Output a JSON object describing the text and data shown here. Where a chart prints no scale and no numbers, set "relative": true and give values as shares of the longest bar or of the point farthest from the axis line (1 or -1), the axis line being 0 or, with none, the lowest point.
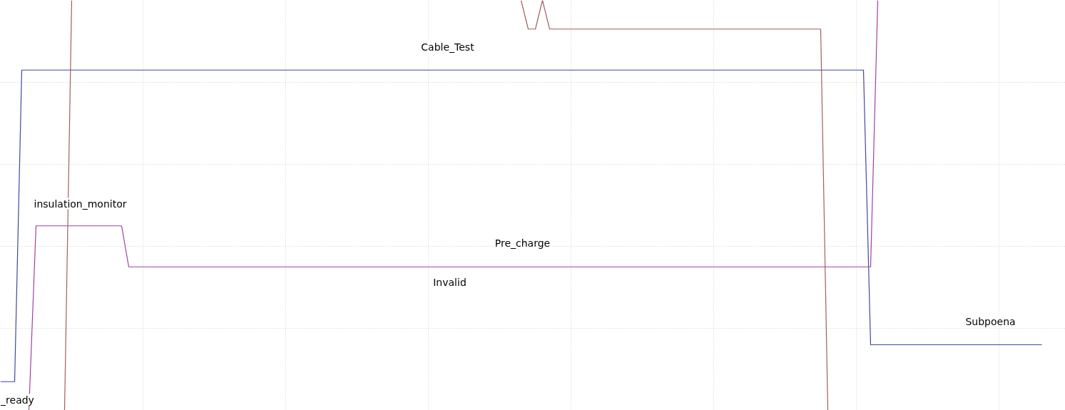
{
  "chart_data": {
    "type": "line",
    "relative": true,
    "grid": true,
    "tick_labels": false,
    "legend": false,
    "line_style": "solid",
    "marker": "none",
    "categories": [
      null,
      null,
      null,
      null,
      null,
      null,
      null,
      null,
      null,
      null,
      null,
      null,
      null,
      null,
      null,
      null,
      null,
      null,
      null,
      null,
      null,
      null,
      null,
      null,
      null,
      null,
      null,
      null,
      null,
      null,
      null,
      null,
      null,
      null,
      null,
      null,
      null,
      null,
      null,
      null,
      null,
      null,
      null,
      null,
      null,
      null,
      null,
      null,
      null,
      null,
      null,
      null,
      null,
      null,
      null,
      null,
      null,
      null,
      null,
      null,
      null,
      null,
      null,
      null,
      null,
      null,
      null,
      null,
      null,
      null,
      null,
      null,
      null,
      null,
      null,
      null,
      null,
      null,
      null,
      null,
      null,
      null,
      null,
      null,
      null,
      null,
      null,
      null,
      null,
      null,
      null,
      null,
      null,
      null,
      null,
      null,
      null,
      null,
      null,
      null,
      null,
      null,
      null,
      null,
      null,
      null,
      null,
      null,
      null,
      null,
      null,
      null,
      null,
      null,
      null,
      null,
      null,
      null,
      null,
      null,
      null,
      null,
      null,
      null,
      null,
      null,
      null,
      null,
      null,
      null,
      null,
      null,
      null,
      null,
      null,
      null,
      null,
      null,
      null,
      null,
      null,
      null,
      null,
      null,
      null,
      null,
      null,
      null,
      null,
      null
    ],
    "series": [
      {
        "color": "#3f48a0",
        "values": [
          0.07,
          0.07,
          0.07,
          0.83,
          0.83,
          0.83,
          0.83,
          0.83,
          0.83,
          0.83,
          0.83,
          0.83,
          0.83,
          0.83,
          0.83,
          0.83,
          0.83,
          0.83,
          0.83,
          0.83,
          0.83,
          0.83,
          0.83,
          0.83,
          0.83,
          0.83,
          0.83,
          0.83,
          0.83,
          0.83,
          0.83,
          0.83,
          0.83,
          0.83,
          0.83,
          0.83,
          0.83,
          0.83,
          0.83,
          0.83,
          0.83,
          0.83,
          0.83,
          0.83,
          0.83,
          0.83,
          0.83,
          0.83,
          0.83,
          0.83,
          0.83,
          0.83,
          0.83,
          0.83,
          0.83,
          0.83,
          0.83,
          0.83,
          0.83,
          0.83,
          0.83,
          0.83,
          0.83,
          0.83,
          0.83,
          0.83,
          0.83,
          0.83,
          0.83,
          0.83,
          0.83,
          0.83,
          0.83,
          0.83,
          0.83,
          0.83,
          0.83,
          0.83,
          0.83,
          0.83,
          0.83,
          0.83,
          0.83,
          0.83,
          0.83,
          0.83,
          0.83,
          0.83,
          0.83,
          0.83,
          0.83,
          0.83,
          0.83,
          0.83,
          0.83,
          0.83,
          0.83,
          0.83,
          0.83,
          0.83,
          0.83,
          0.83,
          0.83,
          0.83,
          0.83,
          0.83,
          0.83,
          0.83,
          0.83,
          0.83,
          0.83,
          0.83,
          0.83,
          0.83,
          0.83,
          0.83,
          0.83,
          0.83,
          0.83,
          0.83,
          0.83,
          0.83,
          0.16,
          0.16,
          0.16,
          0.16,
          0.16,
          0.16,
          0.16,
          0.16,
          0.16,
          0.16,
          0.16,
          0.16,
          0.16,
          0.16,
          0.16,
          0.16,
          0.16,
          0.16,
          0.16,
          0.16,
          0.16,
          0.16,
          0.16,
          0.16,
          0.16,
          null,
          null,
          null
        ]
      },
      {
        "color": "#a040a0",
        "values": [
          null,
          null,
          null,
          null,
          0,
          0.45,
          0.45,
          0.45,
          0.45,
          0.45,
          0.45,
          0.45,
          0.45,
          0.45,
          0.45,
          0.45,
          0.45,
          0.45,
          0.35,
          0.35,
          0.35,
          0.35,
          0.35,
          0.35,
          0.35,
          0.35,
          0.35,
          0.35,
          0.35,
          0.35,
          0.35,
          0.35,
          0.35,
          0.35,
          0.35,
          0.35,
          0.35,
          0.35,
          0.35,
          0.35,
          0.35,
          0.35,
          0.35,
          0.35,
          0.35,
          0.35,
          0.35,
          0.35,
          0.35,
          0.35,
          0.35,
          0.35,
          0.35,
          0.35,
          0.35,
          0.35,
          0.35,
          0.35,
          0.35,
          0.35,
          0.35,
          0.35,
          0.35,
          0.35,
          0.35,
          0.35,
          0.35,
          0.35,
          0.35,
          0.35,
          0.35,
          0.35,
          0.35,
          0.35,
          0.35,
          0.35,
          0.35,
          0.35,
          0.35,
          0.35,
          0.35,
          0.35,
          0.35,
          0.35,
          0.35,
          0.35,
          0.35,
          0.35,
          0.35,
          0.35,
          0.35,
          0.35,
          0.35,
          0.35,
          0.35,
          0.35,
          0.35,
          0.35,
          0.35,
          0.35,
          0.35,
          0.35,
          0.35,
          0.35,
          0.35,
          0.35,
          0.35,
          0.35,
          0.35,
          0.35,
          0.35,
          0.35,
          0.35,
          0.35,
          0.35,
          0.35,
          0.35,
          0.35,
          0.35,
          0.35,
          0.35,
          0.35,
          0.35,
          1,
          null,
          null,
          null,
          null,
          null,
          null,
          null,
          null,
          null,
          null,
          null,
          null,
          null,
          null,
          null,
          null,
          null,
          null,
          null,
          null,
          null,
          null,
          null,
          null,
          null,
          null
        ]
      },
      {
        "color": "#a0605a",
        "values": [
          null,
          null,
          null,
          null,
          null,
          null,
          null,
          null,
          null,
          0,
          1,
          null,
          null,
          null,
          null,
          null,
          null,
          null,
          null,
          null,
          null,
          null,
          null,
          null,
          null,
          null,
          null,
          null,
          null,
          null,
          null,
          null,
          null,
          null,
          null,
          null,
          null,
          null,
          null,
          null,
          null,
          null,
          null,
          null,
          null,
          null,
          null,
          null,
          null,
          null,
          null,
          null,
          null,
          null,
          null,
          null,
          null,
          null,
          null,
          null,
          null,
          null,
          null,
          null,
          null,
          null,
          null,
          null,
          null,
          null,
          null,
          null,
          null,
          1,
          0.93,
          0.93,
          1,
          0.93,
          0.93,
          0.93,
          0.93,
          0.93,
          0.93,
          0.93,
          0.93,
          0.93,
          0.93,
          0.93,
          0.93,
          0.93,
          0.93,
          0.93,
          0.93,
          0.93,
          0.93,
          0.93,
          0.93,
          0.93,
          0.93,
          0.93,
          0.93,
          0.93,
          0.93,
          0.93,
          0.93,
          0.93,
          0.93,
          0.93,
          0.93,
          0.93,
          0.93,
          0.93,
          0.93,
          0.93,
          0.93,
          0.93,
          0,
          null,
          null,
          null,
          null,
          null,
          null,
          null,
          null,
          null,
          null,
          null,
          null,
          null,
          null,
          null,
          null,
          null,
          null,
          null,
          null,
          null,
          null,
          null,
          null,
          null,
          null,
          null,
          null,
          null,
          null,
          null,
          null,
          null
        ]
      }
    ],
    "annotations": [
      "Cable_Test",
      "insulation_monitor",
      "Pre_charge",
      "Invalid",
      "Subpoena",
      "_ready"
    ]
  }
}
